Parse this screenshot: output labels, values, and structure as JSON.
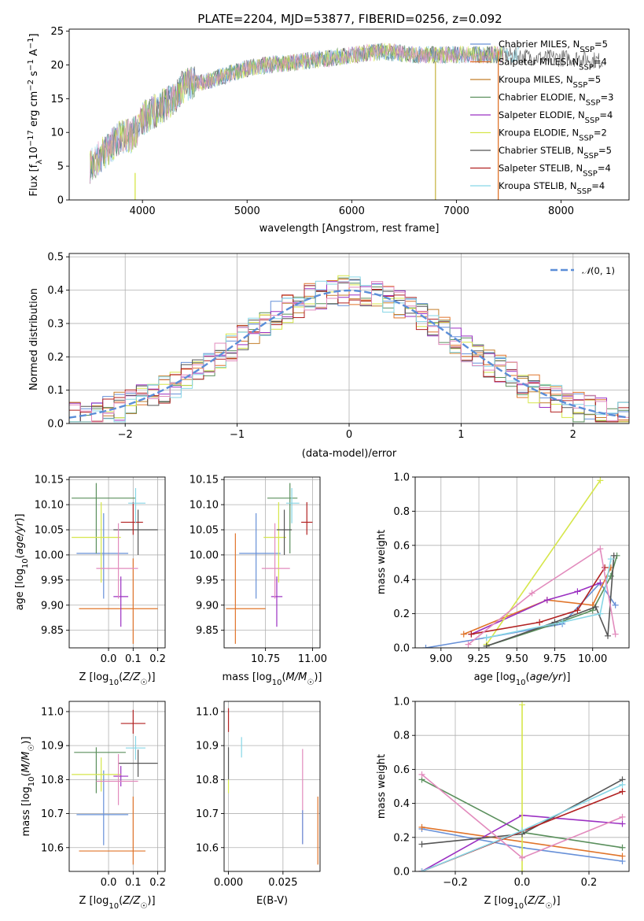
{
  "figure": {
    "title": "PLATE=2204, MJD=53877, FIBERID=0256, z=0.092"
  },
  "colors": {
    "series": [
      "#6790d8",
      "#e0742a",
      "#c47f2b",
      "#5a8f5c",
      "#9b30c2",
      "#d6e64a",
      "#555555",
      "#b22222",
      "#87d6e6",
      "#e28bbd"
    ],
    "grid": "#b0b0b0"
  },
  "chart_data": [
    {
      "type": "line",
      "id": "spectrum",
      "title": "PLATE=2204, MJD=53877, FIBERID=0256, z=0.092",
      "xlabel": "wavelength [Angstrom, rest frame]",
      "ylabel": "Flux [f_λ 10^-17 erg cm^-2 s^-1 A^-1]",
      "xlim": [
        3300,
        8650
      ],
      "ylim": [
        0,
        25.3
      ],
      "xticks": [
        4000,
        5000,
        6000,
        7000,
        8000
      ],
      "yticks": [
        0,
        5,
        10,
        15,
        20,
        25
      ],
      "grid": false,
      "legend_position": "top-right",
      "series": [
        {
          "name": "Chabrier MILES, N_SSP=5"
        },
        {
          "name": "Salpeter MILES, N_SSP=4"
        },
        {
          "name": "Kroupa MILES, N_SSP=5"
        },
        {
          "name": "Chabrier ELODIE, N_SSP=3"
        },
        {
          "name": "Salpeter ELODIE, N_SSP=4"
        },
        {
          "name": "Kroupa ELODIE, N_SSP=2"
        },
        {
          "name": "Chabrier STELIB, N_SSP=5"
        },
        {
          "name": "Salpeter STELIB, N_SSP=4"
        },
        {
          "name": "Kroupa STELIB, N_SSP=4"
        }
      ],
      "continuum": {
        "x": [
          3500,
          3700,
          3800,
          3900,
          3950,
          4000,
          4100,
          4200,
          4300,
          4400,
          4600,
          4800,
          5000,
          5200,
          5500,
          5800,
          6000,
          6300,
          6600,
          7000,
          7200,
          7500,
          7800,
          8000,
          8200,
          8400
        ],
        "y": [
          5,
          8,
          9.5,
          9.5,
          10.5,
          12,
          13,
          14,
          15,
          17,
          17.5,
          18.5,
          19.5,
          20,
          20.5,
          21,
          21.5,
          22,
          21.5,
          21.5,
          21.5,
          21.5,
          21,
          21,
          21,
          20.5
        ]
      },
      "vertical_lines": [
        {
          "x": 3930,
          "y0": 0,
          "y1": 4,
          "color": "#d6e64a"
        },
        {
          "x": 6800,
          "y0": 0,
          "y1": 20.5,
          "color": "#c9b84a"
        },
        {
          "x": 7400,
          "y0": 0,
          "y1": 22,
          "color": "#e0742a"
        }
      ]
    },
    {
      "type": "line",
      "id": "residuals",
      "xlabel": "(data-model)/error",
      "ylabel": "Normed distribution",
      "xlim": [
        -2.5,
        2.5
      ],
      "ylim": [
        0,
        0.51
      ],
      "xticks": [
        -2,
        -1,
        0,
        1,
        2
      ],
      "yticks": [
        0.0,
        0.1,
        0.2,
        0.3,
        0.4,
        0.5
      ],
      "grid": true,
      "legend_position": "top-right",
      "reference_curve": {
        "name": "N(0, 1)",
        "mean": 0,
        "sigma": 1
      },
      "bin_width": 0.1
    },
    {
      "type": "scatter",
      "id": "age_vs_Z",
      "xlabel": "Z [log10(Z/Z☉)]",
      "ylabel": "age  [log10(age/yr)]",
      "xlim": [
        -0.16,
        0.23
      ],
      "ylim": [
        9.815,
        10.155
      ],
      "xticks": [
        0.0,
        0.1,
        0.2
      ],
      "yticks": [
        9.85,
        9.9,
        9.95,
        10.0,
        10.05,
        10.1,
        10.15
      ],
      "grid": true,
      "points": [
        {
          "x": -0.02,
          "y": 10.003,
          "xerr": [
            0.11,
            0.1
          ],
          "yerr": [
            0.09,
            0.08
          ],
          "color": "#6790d8"
        },
        {
          "x": 0.1,
          "y": 9.893,
          "xerr": [
            0.22,
            0.1
          ],
          "yerr": [
            0.07,
            0.1
          ],
          "color": "#e0742a"
        },
        {
          "x": -0.05,
          "y": 10.113,
          "xerr": [
            0.1,
            0.16
          ],
          "yerr": [
            0.11,
            0.03
          ],
          "color": "#5a8f5c"
        },
        {
          "x": 0.05,
          "y": 9.917,
          "xerr": [
            0.03,
            0.03
          ],
          "yerr": [
            0.06,
            0.04
          ],
          "color": "#9b30c2"
        },
        {
          "x": -0.03,
          "y": 10.035,
          "xerr": [
            0.12,
            0.08
          ],
          "yerr": [
            0.09,
            0.07
          ],
          "color": "#d6e64a"
        },
        {
          "x": 0.12,
          "y": 10.05,
          "xerr": [
            0.1,
            0.08
          ],
          "yerr": [
            0.05,
            0.04
          ],
          "color": "#555555"
        },
        {
          "x": 0.1,
          "y": 10.065,
          "xerr": [
            0.05,
            0.04
          ],
          "yerr": [
            0.025,
            0.04
          ],
          "color": "#b22222"
        },
        {
          "x": 0.11,
          "y": 10.103,
          "xerr": [
            0.03,
            0.04
          ],
          "yerr": [
            0.04,
            0.03
          ],
          "color": "#87d6e6"
        },
        {
          "x": 0.04,
          "y": 9.973,
          "xerr": [
            0.09,
            0.08
          ],
          "yerr": [
            0.06,
            0.09
          ],
          "color": "#e28bbd"
        }
      ]
    },
    {
      "type": "scatter",
      "id": "age_vs_mass",
      "xlabel": "mass [log10(M/M☉)]",
      "ylabel": "",
      "xlim": [
        10.53,
        11.04
      ],
      "ylim": [
        9.815,
        10.155
      ],
      "xticks": [
        10.75,
        11.0
      ],
      "yticks": [
        9.85,
        9.9,
        9.95,
        10.0,
        10.05,
        10.1,
        10.15
      ],
      "grid": true,
      "points": [
        {
          "x": 10.7,
          "y": 10.003,
          "xerr": [
            0.09,
            0.13
          ],
          "yerr": [
            0.09,
            0.08
          ],
          "color": "#6790d8"
        },
        {
          "x": 10.59,
          "y": 9.893,
          "xerr": [
            0.05,
            0.16
          ],
          "yerr": [
            0.07,
            0.15
          ],
          "color": "#e0742a"
        },
        {
          "x": 10.88,
          "y": 10.113,
          "xerr": [
            0.12,
            0.04
          ],
          "yerr": [
            0.11,
            0.03
          ],
          "color": "#5a8f5c"
        },
        {
          "x": 10.81,
          "y": 9.917,
          "xerr": [
            0.03,
            0.03
          ],
          "yerr": [
            0.06,
            0.04
          ],
          "color": "#9b30c2"
        },
        {
          "x": 10.82,
          "y": 10.035,
          "xerr": [
            0.08,
            0.04
          ],
          "yerr": [
            0.09,
            0.07
          ],
          "color": "#d6e64a"
        },
        {
          "x": 10.85,
          "y": 10.05,
          "xerr": [
            0.04,
            0.04
          ],
          "yerr": [
            0.05,
            0.04
          ],
          "color": "#555555"
        },
        {
          "x": 10.97,
          "y": 10.065,
          "xerr": [
            0.03,
            0.03
          ],
          "yerr": [
            0.025,
            0.04
          ],
          "color": "#b22222"
        },
        {
          "x": 10.89,
          "y": 10.103,
          "xerr": [
            0.03,
            0.04
          ],
          "yerr": [
            0.04,
            0.03
          ],
          "color": "#87d6e6"
        },
        {
          "x": 10.8,
          "y": 9.973,
          "xerr": [
            0.07,
            0.08
          ],
          "yerr": [
            0.06,
            0.09
          ],
          "color": "#e28bbd"
        }
      ]
    },
    {
      "type": "line",
      "id": "massweight_vs_age",
      "xlabel": "age  [log10(age/yr)]",
      "ylabel": "mass weight",
      "xlim": [
        8.83,
        10.24
      ],
      "ylim": [
        0,
        1
      ],
      "xticks": [
        9.0,
        9.25,
        9.5,
        9.75,
        10.0
      ],
      "yticks": [
        0.0,
        0.2,
        0.4,
        0.6,
        0.8,
        1.0
      ],
      "grid": true,
      "series": [
        {
          "x": [
            8.9,
            9.3,
            9.8,
            10.05,
            10.15
          ],
          "y": [
            0.0,
            0.06,
            0.14,
            0.38,
            0.25
          ],
          "color": "#6790d8"
        },
        {
          "x": [
            9.15,
            9.7,
            10.0,
            10.12
          ],
          "y": [
            0.08,
            0.28,
            0.25,
            0.47
          ],
          "color": "#e0742a"
        },
        {
          "x": [
            9.3,
            9.75,
            10.0,
            10.12,
            10.16
          ],
          "y": [
            0.01,
            0.14,
            0.22,
            0.42,
            0.54
          ],
          "color": "#5a8f5c"
        },
        {
          "x": [
            9.2,
            9.7,
            9.9,
            10.05
          ],
          "y": [
            0.08,
            0.28,
            0.33,
            0.38
          ],
          "color": "#9b30c2"
        },
        {
          "x": [
            9.3,
            10.05
          ],
          "y": [
            0.02,
            0.98
          ],
          "color": "#d6e64a"
        },
        {
          "x": [
            9.3,
            9.75,
            10.02,
            10.1,
            10.14
          ],
          "y": [
            0.01,
            0.15,
            0.24,
            0.07,
            0.54
          ],
          "color": "#555555"
        },
        {
          "x": [
            9.2,
            9.65,
            9.9,
            10.08
          ],
          "y": [
            0.08,
            0.15,
            0.22,
            0.47
          ],
          "color": "#b22222"
        },
        {
          "x": [
            9.3,
            9.8,
            10.05,
            10.12
          ],
          "y": [
            0.06,
            0.15,
            0.2,
            0.52
          ],
          "color": "#87d6e6"
        },
        {
          "x": [
            9.18,
            9.6,
            10.05,
            10.15
          ],
          "y": [
            0.02,
            0.32,
            0.58,
            0.08
          ],
          "color": "#e28bbd"
        }
      ]
    },
    {
      "type": "scatter",
      "id": "mass_vs_Z",
      "xlabel": "Z [log10(Z/Z☉)]",
      "ylabel": "mass [log10(M/M☉)]",
      "xlim": [
        -0.16,
        0.23
      ],
      "ylim": [
        10.53,
        11.03
      ],
      "xticks": [
        0.0,
        0.1,
        0.2
      ],
      "yticks": [
        10.6,
        10.7,
        10.8,
        10.9,
        11.0
      ],
      "grid": true,
      "points": [
        {
          "x": -0.02,
          "y": 10.697,
          "xerr": [
            0.11,
            0.1
          ],
          "yerr": [
            0.09,
            0.13
          ],
          "color": "#6790d8"
        },
        {
          "x": 0.1,
          "y": 10.59,
          "xerr": [
            0.22,
            0.05
          ],
          "yerr": [
            0.04,
            0.16
          ],
          "color": "#e0742a"
        },
        {
          "x": -0.05,
          "y": 10.88,
          "xerr": [
            0.09,
            0.12
          ],
          "yerr": [
            0.12,
            0.015
          ],
          "color": "#5a8f5c"
        },
        {
          "x": 0.05,
          "y": 10.81,
          "xerr": [
            0.03,
            0.03
          ],
          "yerr": [
            0.03,
            0.03
          ],
          "color": "#9b30c2"
        },
        {
          "x": -0.03,
          "y": 10.815,
          "xerr": [
            0.12,
            0.08
          ],
          "yerr": [
            0.05,
            0.05
          ],
          "color": "#d6e64a"
        },
        {
          "x": 0.12,
          "y": 10.848,
          "xerr": [
            0.08,
            0.08
          ],
          "yerr": [
            0.04,
            0.04
          ],
          "color": "#555555"
        },
        {
          "x": 0.1,
          "y": 10.965,
          "xerr": [
            0.05,
            0.05
          ],
          "yerr": [
            0.03,
            0.04
          ],
          "color": "#b22222"
        },
        {
          "x": 0.11,
          "y": 10.893,
          "xerr": [
            0.04,
            0.04
          ],
          "yerr": [
            0.035,
            0.035
          ],
          "color": "#87d6e6"
        },
        {
          "x": 0.04,
          "y": 10.795,
          "xerr": [
            0.09,
            0.08
          ],
          "yerr": [
            0.07,
            0.08
          ],
          "color": "#e28bbd"
        }
      ]
    },
    {
      "type": "scatter",
      "id": "mass_vs_EBV",
      "xlabel": "E(B-V)",
      "ylabel": "",
      "xlim": [
        -0.002,
        0.042
      ],
      "ylim": [
        10.53,
        11.03
      ],
      "xticks": [
        0.0,
        0.025
      ],
      "yticks": [
        10.6,
        10.7,
        10.8,
        10.9,
        11.0
      ],
      "grid": true,
      "points": [
        {
          "x": 0.0,
          "y": 10.97,
          "yerr": [
            0.03,
            0.04
          ],
          "color": "#b22222"
        },
        {
          "x": 0.0,
          "y": 10.845,
          "yerr": [
            0.045,
            0.05
          ],
          "color": "#555555"
        },
        {
          "x": 0.0,
          "y": 10.77,
          "yerr": [
            0.01,
            0.03
          ],
          "color": "#d6e64a"
        },
        {
          "x": 0.006,
          "y": 10.895,
          "yerr": [
            0.03,
            0.03
          ],
          "color": "#87d6e6"
        },
        {
          "x": 0.034,
          "y": 10.75,
          "yerr": [
            0.14,
            0.14
          ],
          "color": "#e28bbd"
        },
        {
          "x": 0.034,
          "y": 10.66,
          "yerr": [
            0.05,
            0.05
          ],
          "color": "#6790d8"
        },
        {
          "x": 0.041,
          "y": 10.65,
          "yerr": [
            0.1,
            0.1
          ],
          "color": "#e0742a"
        }
      ]
    },
    {
      "type": "line",
      "id": "massweight_vs_Z",
      "xlabel": "Z [log10(Z/Z☉)]",
      "ylabel": "mass weight",
      "xlim": [
        -0.32,
        0.32
      ],
      "ylim": [
        0,
        1
      ],
      "xticks": [
        -0.2,
        0.0,
        0.2
      ],
      "yticks": [
        0.0,
        0.2,
        0.4,
        0.6,
        0.8,
        1.0
      ],
      "grid": true,
      "series": [
        {
          "x": [
            -0.3,
            0.0,
            0.3
          ],
          "y": [
            0.25,
            0.14,
            0.06
          ],
          "color": "#6790d8"
        },
        {
          "x": [
            -0.3,
            0.3
          ],
          "y": [
            0.26,
            0.09
          ],
          "color": "#e0742a"
        },
        {
          "x": [
            -0.3,
            0.0,
            0.3
          ],
          "y": [
            0.54,
            0.23,
            0.14
          ],
          "color": "#5a8f5c"
        },
        {
          "x": [
            -0.3,
            0.0,
            0.3
          ],
          "y": [
            0.0,
            0.33,
            0.28
          ],
          "color": "#9b30c2"
        },
        {
          "x": [
            0.0,
            0.0
          ],
          "y": [
            0.0,
            0.98
          ],
          "color": "#d6e64a"
        },
        {
          "x": [
            -0.3,
            0.0,
            0.3
          ],
          "y": [
            0.16,
            0.22,
            0.54
          ],
          "color": "#555555"
        },
        {
          "x": [
            -0.3,
            0.3
          ],
          "y": [
            0.0,
            0.47
          ],
          "color": "#b22222"
        },
        {
          "x": [
            -0.3,
            0.0,
            0.3
          ],
          "y": [
            0.0,
            0.24,
            0.51
          ],
          "color": "#87d6e6"
        },
        {
          "x": [
            -0.3,
            0.0,
            0.3
          ],
          "y": [
            0.57,
            0.08,
            0.32
          ],
          "color": "#e28bbd"
        }
      ]
    }
  ]
}
